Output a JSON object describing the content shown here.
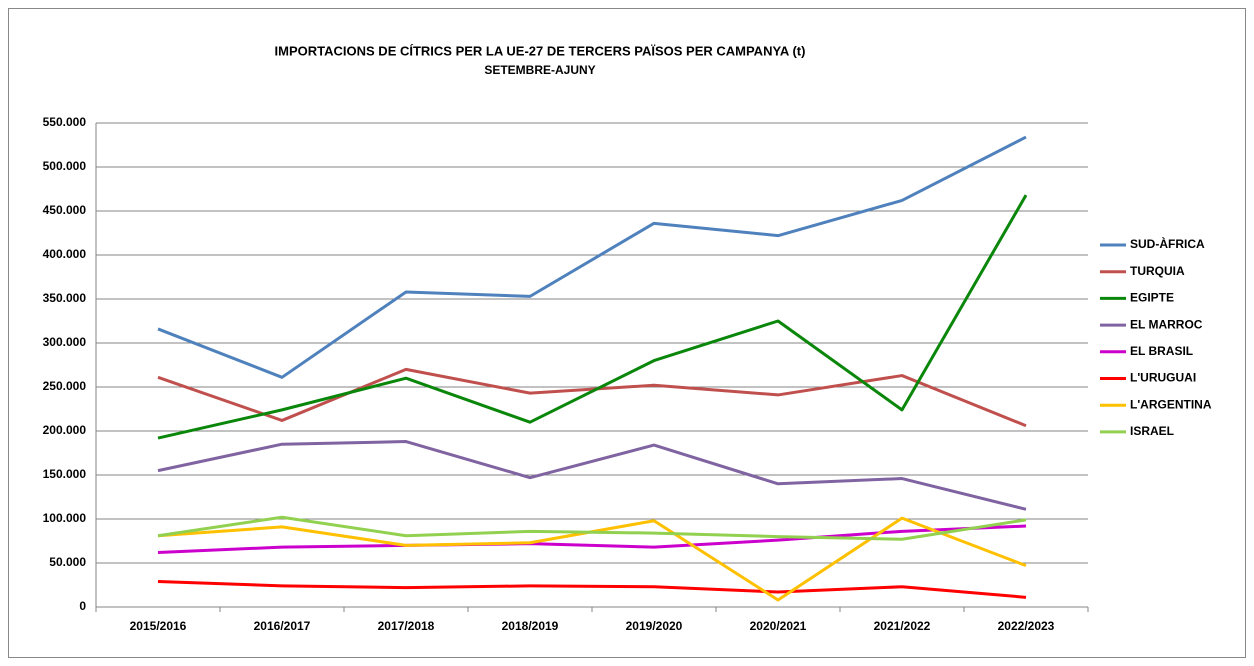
{
  "chart_data": {
    "type": "line",
    "title": "IMPORTACIONS DE CÍTRICS PER LA UE-27 DE TERCERS PAÏSOS PER CAMPANYA  (t)",
    "subtitle": "SETEMBRE-AJUNY",
    "categories": [
      "2015/2016",
      "2016/2017",
      "2017/2018",
      "2018/2019",
      "2019/2020",
      "2020/2021",
      "2021/2022",
      "2022/2023"
    ],
    "series": [
      {
        "name": "SUD-ÀFRICA",
        "color": "#4f81bd",
        "values": [
          316000,
          261000,
          358000,
          353000,
          436000,
          422000,
          462000,
          534000
        ]
      },
      {
        "name": "TURQUIA",
        "color": "#c0504d",
        "values": [
          261000,
          212000,
          270000,
          243000,
          252000,
          241000,
          263000,
          206000
        ]
      },
      {
        "name": "EGIPTE",
        "color": "#0a870a",
        "values": [
          192000,
          224000,
          260000,
          210000,
          280000,
          325000,
          224000,
          468000
        ]
      },
      {
        "name": "EL MARROC",
        "color": "#8064a2",
        "values": [
          155000,
          185000,
          188000,
          147000,
          184000,
          140000,
          146000,
          111000
        ]
      },
      {
        "name": "EL BRASIL",
        "color": "#cc00cc",
        "values": [
          62000,
          68000,
          70000,
          72000,
          68000,
          76000,
          86000,
          92000
        ]
      },
      {
        "name": "L'URUGUAI",
        "color": "#ff0000",
        "values": [
          29000,
          24000,
          22000,
          24000,
          23000,
          17000,
          23000,
          11000
        ]
      },
      {
        "name": "L'ARGENTINA",
        "color": "#ffc000",
        "values": [
          81000,
          91000,
          70000,
          73000,
          98000,
          8000,
          101000,
          47000
        ]
      },
      {
        "name": "ISRAEL",
        "color": "#92d050",
        "values": [
          81000,
          102000,
          81000,
          86000,
          84000,
          80000,
          77000,
          99000
        ]
      }
    ],
    "ylim": [
      0,
      550000
    ],
    "yticks": [
      0,
      {
        "value": 50000,
        "label": "50.000"
      },
      {
        "value": 100000,
        "label": "100.000"
      },
      {
        "value": 150000,
        "label": "150.000"
      },
      {
        "value": 200000,
        "label": "200.000"
      },
      {
        "value": 250000,
        "label": "250.000"
      },
      {
        "value": 300000,
        "label": "300.000"
      },
      {
        "value": 350000,
        "label": "350.000"
      },
      {
        "value": 400000,
        "label": "400.000"
      },
      {
        "value": 450000,
        "label": "450.000"
      },
      {
        "value": 500000,
        "label": "500.000"
      },
      {
        "value": 550000,
        "label": "550.000"
      }
    ],
    "grid": true,
    "legend": "right"
  }
}
